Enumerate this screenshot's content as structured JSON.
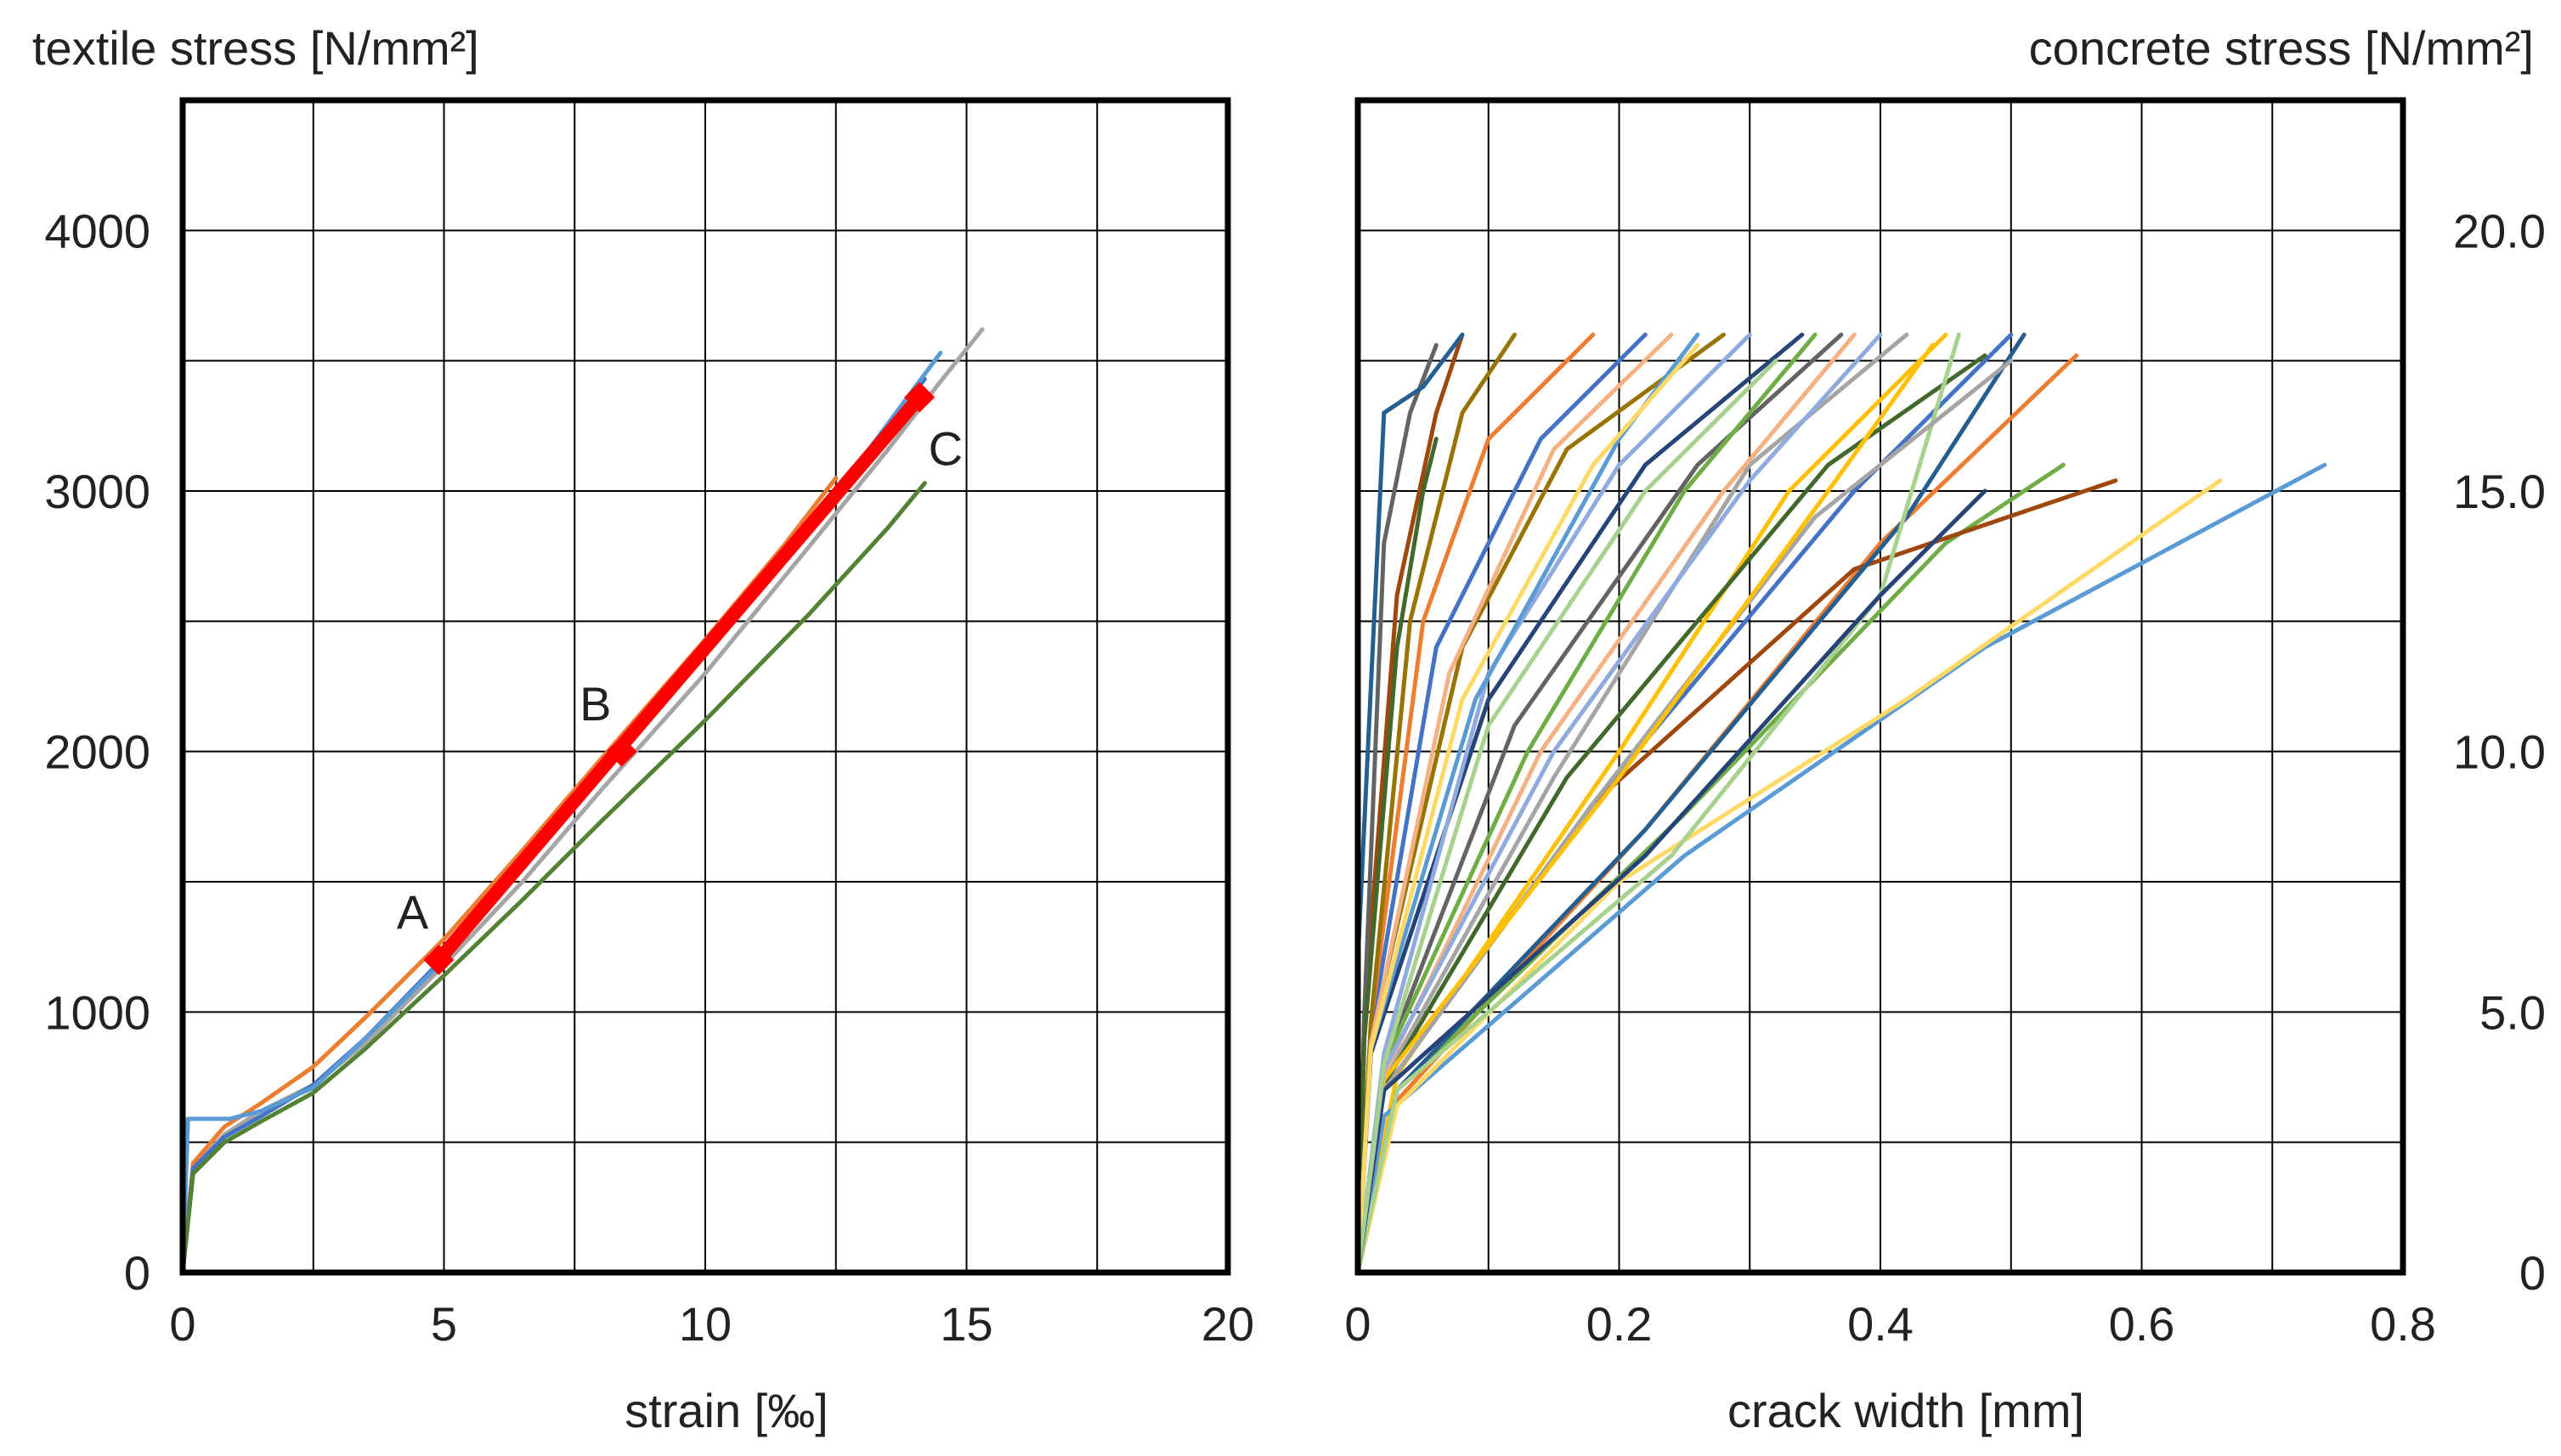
{
  "chart_data": [
    {
      "type": "line",
      "title": "",
      "ylabel": "textile stress [N/mm²]",
      "xlabel": "strain [‰]",
      "xlim": [
        0,
        20
      ],
      "ylim": [
        0,
        4500
      ],
      "grid": true,
      "x_ticks": [
        0,
        2.5,
        5,
        7.5,
        10,
        12.5,
        15,
        17.5,
        20
      ],
      "y_ticks": [
        0,
        500,
        1000,
        1500,
        2000,
        2500,
        3000,
        3500,
        4000,
        4500
      ],
      "x_tick_labels": [
        {
          "value": 0,
          "text": "0"
        },
        {
          "value": 5,
          "text": "5"
        },
        {
          "value": 10,
          "text": "10"
        },
        {
          "value": 15,
          "text": "15"
        },
        {
          "value": 20,
          "text": "20"
        }
      ],
      "y_tick_labels": [
        {
          "value": 0,
          "text": "0"
        },
        {
          "value": 1000,
          "text": "1000"
        },
        {
          "value": 2000,
          "text": "2000"
        },
        {
          "value": 3000,
          "text": "3000"
        },
        {
          "value": 4000,
          "text": "4000"
        }
      ],
      "series": [
        {
          "name": "grey",
          "color": "#a5a5a5",
          "x": [
            0,
            0.2,
            0.8,
            1.5,
            2.5,
            3.5,
            5,
            6.5,
            8,
            10,
            12,
            13.5,
            14.5,
            15.3
          ],
          "y": [
            0,
            400,
            530,
            620,
            720,
            880,
            1180,
            1500,
            1850,
            2300,
            2790,
            3160,
            3420,
            3620
          ]
        },
        {
          "name": "orange",
          "color": "#ed7d31",
          "x": [
            0,
            0.2,
            0.8,
            1.5,
            2.5,
            3.5,
            5,
            6.5,
            8,
            10,
            11.5,
            12.5
          ],
          "y": [
            0,
            420,
            560,
            650,
            790,
            980,
            1280,
            1620,
            1970,
            2430,
            2790,
            3050
          ]
        },
        {
          "name": "blue",
          "color": "#4472c4",
          "x": [
            0,
            0.2,
            0.8,
            1.5,
            2.5,
            3.5,
            5,
            6.5,
            8,
            10,
            12,
            13.5,
            14.2
          ],
          "y": [
            0,
            400,
            520,
            600,
            720,
            900,
            1210,
            1560,
            1920,
            2380,
            2850,
            3240,
            3430
          ]
        },
        {
          "name": "light-blue",
          "color": "#5b9bd5",
          "x": [
            0,
            0.1,
            0.9,
            1.5,
            2.5,
            3.5,
            5,
            6.5,
            8,
            10,
            12,
            13.5,
            14.5
          ],
          "y": [
            0,
            590,
            590,
            620,
            710,
            900,
            1200,
            1550,
            1910,
            2370,
            2850,
            3260,
            3530
          ]
        },
        {
          "name": "green",
          "color": "#548235",
          "x": [
            0,
            0.2,
            0.8,
            1.5,
            2.5,
            3.5,
            5,
            6.5,
            8,
            10,
            12,
            13.5,
            14.2
          ],
          "y": [
            0,
            380,
            500,
            580,
            690,
            860,
            1140,
            1430,
            1730,
            2120,
            2530,
            2860,
            3030
          ]
        },
        {
          "name": "red-fit",
          "color": "#ff0000",
          "x": [
            4.9,
            14.1
          ],
          "y": [
            1200,
            3360
          ]
        }
      ],
      "markers": [
        {
          "name": "A",
          "x": 4.9,
          "y": 1200,
          "color": "#ff0000"
        },
        {
          "name": "B",
          "x": 8.4,
          "y": 2000,
          "color": "#ff0000"
        },
        {
          "name": "C",
          "x": 14.1,
          "y": 3360,
          "color": "#ff0000"
        }
      ],
      "annotations": [
        {
          "text": "A",
          "x": 4.4,
          "y": 1320
        },
        {
          "text": "B",
          "x": 7.9,
          "y": 2120
        },
        {
          "text": "C",
          "x": 14.6,
          "y": 3100
        }
      ]
    },
    {
      "type": "line",
      "title": "",
      "ylabel": "concrete stress [N/mm²]",
      "xlabel": "crack width [mm]",
      "xlim": [
        0,
        0.8
      ],
      "ylim": [
        0,
        22.5
      ],
      "grid": true,
      "x_ticks": [
        0,
        0.1,
        0.2,
        0.3,
        0.4,
        0.5,
        0.6,
        0.7,
        0.8
      ],
      "y_ticks": [
        0,
        2.5,
        5,
        7.5,
        10,
        12.5,
        15,
        17.5,
        20,
        22.5
      ],
      "x_tick_labels": [
        {
          "value": 0,
          "text": "0"
        },
        {
          "value": 0.2,
          "text": "0.2"
        },
        {
          "value": 0.4,
          "text": "0.4"
        },
        {
          "value": 0.6,
          "text": "0.6"
        },
        {
          "value": 0.8,
          "text": "0.8"
        }
      ],
      "y_tick_labels": [
        {
          "value": 0,
          "text": "0"
        },
        {
          "value": 5,
          "text": "5.0"
        },
        {
          "value": 10,
          "text": "10.0"
        },
        {
          "value": 15,
          "text": "15.0"
        },
        {
          "value": 20,
          "text": "20.0"
        }
      ],
      "series": [
        {
          "name": "crack-01",
          "color": "#4472c4",
          "x": [
            0,
            0.02,
            0.18,
            0.38,
            0.5
          ],
          "y": [
            0,
            3.5,
            9.0,
            15.0,
            18.0
          ]
        },
        {
          "name": "crack-02",
          "color": "#ed7d31",
          "x": [
            0,
            0.03,
            0.22,
            0.4,
            0.55
          ],
          "y": [
            0,
            3.3,
            8.5,
            14.0,
            17.6
          ]
        },
        {
          "name": "crack-03",
          "color": "#a5a5a5",
          "x": [
            0,
            0.02,
            0.15,
            0.3,
            0.42
          ],
          "y": [
            0,
            3.7,
            9.5,
            15.5,
            18.0
          ]
        },
        {
          "name": "crack-04",
          "color": "#ffc000",
          "x": [
            0,
            0.03,
            0.2,
            0.33,
            0.45
          ],
          "y": [
            0,
            3.8,
            10.0,
            15.0,
            18.0
          ]
        },
        {
          "name": "crack-05",
          "color": "#5b9bd5",
          "x": [
            0,
            0.02,
            0.25,
            0.48,
            0.74
          ],
          "y": [
            0,
            3.0,
            8.0,
            12.0,
            15.5
          ]
        },
        {
          "name": "crack-06",
          "color": "#70ad47",
          "x": [
            0,
            0.03,
            0.25,
            0.45,
            0.54
          ],
          "y": [
            0,
            3.5,
            8.8,
            14.0,
            15.5
          ]
        },
        {
          "name": "crack-07",
          "color": "#264478",
          "x": [
            0,
            0.01,
            0.1,
            0.22,
            0.34
          ],
          "y": [
            0,
            4.2,
            11.0,
            15.5,
            18.0
          ]
        },
        {
          "name": "crack-08",
          "color": "#9e480e",
          "x": [
            0,
            0.02,
            0.18,
            0.38,
            0.58
          ],
          "y": [
            0,
            3.5,
            9.0,
            13.5,
            15.2
          ]
        },
        {
          "name": "crack-09",
          "color": "#636363",
          "x": [
            0,
            0.02,
            0.12,
            0.26,
            0.37
          ],
          "y": [
            0,
            4.0,
            10.5,
            15.5,
            18.0
          ]
        },
        {
          "name": "crack-10",
          "color": "#997300",
          "x": [
            0,
            0.01,
            0.08,
            0.16,
            0.28
          ],
          "y": [
            0,
            4.5,
            12.0,
            15.8,
            18.0
          ]
        },
        {
          "name": "crack-11",
          "color": "#255e91",
          "x": [
            0,
            0.03,
            0.22,
            0.42,
            0.51
          ],
          "y": [
            0,
            3.5,
            8.5,
            14.5,
            18.0
          ]
        },
        {
          "name": "crack-12",
          "color": "#43682b",
          "x": [
            0,
            0.02,
            0.16,
            0.36,
            0.48
          ],
          "y": [
            0,
            3.6,
            9.5,
            15.5,
            17.6
          ]
        },
        {
          "name": "crack-13",
          "color": "#f4b183",
          "x": [
            0,
            0.02,
            0.14,
            0.28,
            0.38
          ],
          "y": [
            0,
            3.8,
            10.0,
            15.0,
            18.0
          ]
        },
        {
          "name": "crack-14",
          "color": "#ffd966",
          "x": [
            0,
            0.03,
            0.2,
            0.42,
            0.66
          ],
          "y": [
            0,
            3.2,
            7.5,
            11.0,
            15.2
          ]
        },
        {
          "name": "crack-15",
          "color": "#8faadc",
          "x": [
            0,
            0.02,
            0.1,
            0.2,
            0.3
          ],
          "y": [
            0,
            4.2,
            11.5,
            15.5,
            18.0
          ]
        },
        {
          "name": "crack-16",
          "color": "#a9d18e",
          "x": [
            0,
            0.03,
            0.24,
            0.4,
            0.46
          ],
          "y": [
            0,
            3.5,
            8.0,
            13.0,
            18.0
          ]
        },
        {
          "name": "crack-17",
          "color": "#4472c4",
          "x": [
            0,
            0.01,
            0.06,
            0.14,
            0.22
          ],
          "y": [
            0,
            4.6,
            12.0,
            16.0,
            18.0
          ]
        },
        {
          "name": "crack-18",
          "color": "#ed7d31",
          "x": [
            0,
            0.01,
            0.05,
            0.1,
            0.18
          ],
          "y": [
            0,
            4.8,
            12.5,
            16.0,
            18.0
          ]
        },
        {
          "name": "crack-19",
          "color": "#a5a5a5",
          "x": [
            0,
            0.02,
            0.18,
            0.35,
            0.5
          ],
          "y": [
            0,
            3.5,
            9.0,
            14.5,
            17.5
          ]
        },
        {
          "name": "crack-20",
          "color": "#70ad47",
          "x": [
            0,
            0.02,
            0.13,
            0.25,
            0.35
          ],
          "y": [
            0,
            4.0,
            10.0,
            15.0,
            18.0
          ]
        },
        {
          "name": "crack-21",
          "color": "#5b9bd5",
          "x": [
            0,
            0.01,
            0.09,
            0.2,
            0.26
          ],
          "y": [
            0,
            4.3,
            11.0,
            16.0,
            18.0
          ]
        },
        {
          "name": "crack-22",
          "color": "#ffc000",
          "x": [
            0,
            0.02,
            0.2,
            0.36,
            0.44
          ],
          "y": [
            0,
            3.7,
            9.5,
            15.0,
            17.8
          ]
        },
        {
          "name": "crack-23",
          "color": "#264478",
          "x": [
            0,
            0.02,
            0.22,
            0.4,
            0.48
          ],
          "y": [
            0,
            3.5,
            8.0,
            13.0,
            15.0
          ]
        },
        {
          "name": "crack-24",
          "color": "#9e480e",
          "x": [
            0,
            0.005,
            0.03,
            0.06,
            0.08
          ],
          "y": [
            0,
            5.0,
            13.0,
            16.5,
            18.0
          ]
        },
        {
          "name": "crack-25",
          "color": "#636363",
          "x": [
            0,
            0.005,
            0.02,
            0.04,
            0.06
          ],
          "y": [
            0,
            5.0,
            14.0,
            16.5,
            17.8
          ]
        },
        {
          "name": "crack-26",
          "color": "#997300",
          "x": [
            0,
            0.01,
            0.04,
            0.08,
            0.12
          ],
          "y": [
            0,
            4.8,
            12.5,
            16.5,
            18.0
          ]
        },
        {
          "name": "crack-27",
          "color": "#255e91",
          "x": [
            0,
            0.0,
            0.02,
            0.05,
            0.08
          ],
          "y": [
            0,
            6.0,
            16.5,
            17.0,
            18.0
          ]
        },
        {
          "name": "crack-28",
          "color": "#43682b",
          "x": [
            0,
            0.005,
            0.03,
            0.05,
            0.06
          ],
          "y": [
            0,
            4.5,
            12.0,
            15.0,
            16.0
          ]
        },
        {
          "name": "crack-29",
          "color": "#f4b183",
          "x": [
            0,
            0.01,
            0.07,
            0.15,
            0.24
          ],
          "y": [
            0,
            4.4,
            11.5,
            15.8,
            18.0
          ]
        },
        {
          "name": "crack-30",
          "color": "#8faadc",
          "x": [
            0,
            0.02,
            0.15,
            0.3,
            0.4
          ],
          "y": [
            0,
            3.9,
            10.0,
            15.2,
            18.0
          ]
        },
        {
          "name": "crack-31",
          "color": "#ffd966",
          "x": [
            0,
            0.01,
            0.08,
            0.18,
            0.26
          ],
          "y": [
            0,
            4.3,
            11.0,
            15.5,
            17.8
          ]
        },
        {
          "name": "crack-32",
          "color": "#a9d18e",
          "x": [
            0,
            0.02,
            0.1,
            0.22,
            0.32
          ],
          "y": [
            0,
            4.0,
            10.5,
            15.0,
            17.5
          ]
        }
      ]
    }
  ]
}
